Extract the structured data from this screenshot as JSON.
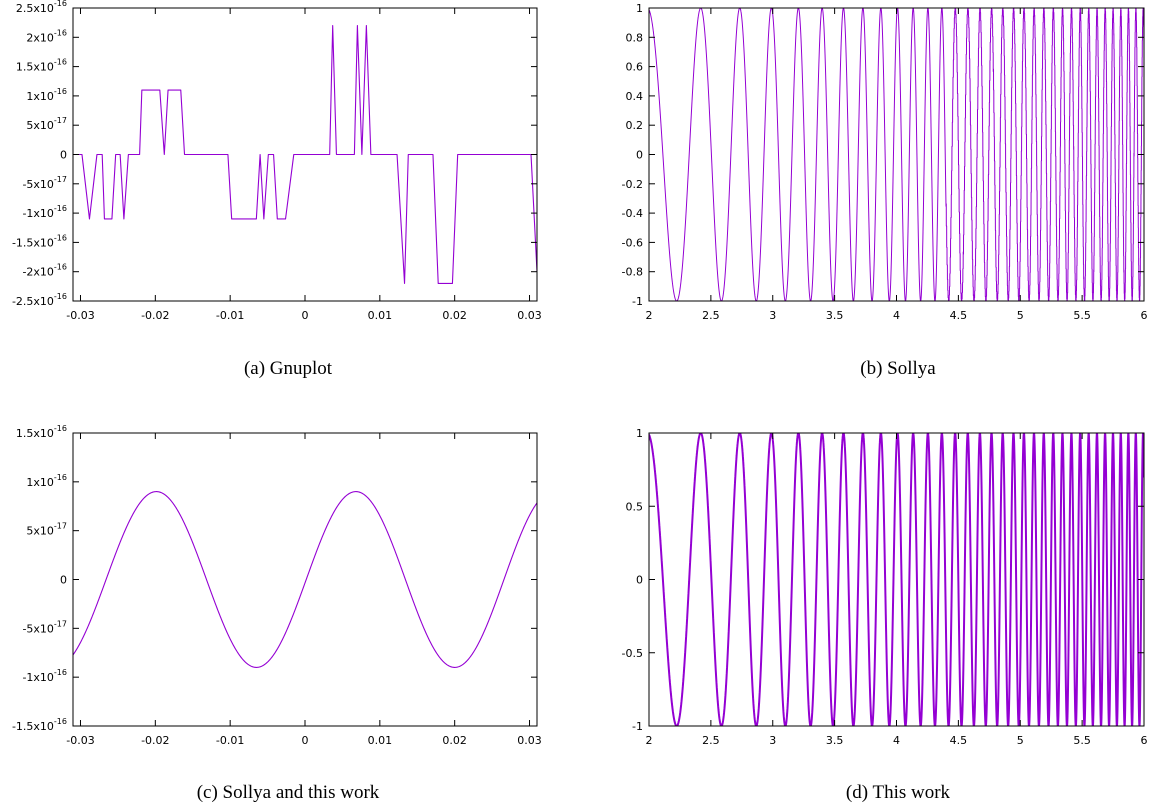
{
  "colors": {
    "series": "#9400d3",
    "axis": "#000000"
  },
  "chart_data": [
    {
      "id": "a",
      "type": "line",
      "caption": "(a) Gnuplot",
      "xlim": [
        -0.031,
        0.031
      ],
      "ylim": [
        -2.5e-16,
        2.5e-16
      ],
      "x_ticks": [
        {
          "v": -0.03,
          "label": "-0.03"
        },
        {
          "v": -0.02,
          "label": "-0.02"
        },
        {
          "v": -0.01,
          "label": "-0.01"
        },
        {
          "v": 0,
          "label": "0"
        },
        {
          "v": 0.01,
          "label": "0.01"
        },
        {
          "v": 0.02,
          "label": "0.02"
        },
        {
          "v": 0.03,
          "label": "0.03"
        }
      ],
      "y_ticks": [
        {
          "v": 2.5e-16,
          "base": "2.5x10",
          "exp": "-16"
        },
        {
          "v": 2e-16,
          "base": "2x10",
          "exp": "-16"
        },
        {
          "v": 1.5e-16,
          "base": "1.5x10",
          "exp": "-16"
        },
        {
          "v": 1e-16,
          "base": "1x10",
          "exp": "-16"
        },
        {
          "v": 5e-17,
          "base": "5x10",
          "exp": "-17"
        },
        {
          "v": 0,
          "base": "0",
          "exp": ""
        },
        {
          "v": -5e-17,
          "base": "-5x10",
          "exp": "-17"
        },
        {
          "v": -1e-16,
          "base": "-1x10",
          "exp": "-16"
        },
        {
          "v": -1.5e-16,
          "base": "-1.5x10",
          "exp": "-16"
        },
        {
          "v": -2e-16,
          "base": "-2x10",
          "exp": "-16"
        },
        {
          "v": -2.5e-16,
          "base": "-2.5x10",
          "exp": "-16"
        }
      ],
      "series": [
        {
          "points": [
            [
              -0.031,
              0
            ],
            [
              -0.0298,
              0
            ],
            [
              -0.0288,
              -1.1e-16
            ],
            [
              -0.0278,
              0
            ],
            [
              -0.0271,
              0
            ],
            [
              -0.0268,
              -1.1e-16
            ],
            [
              -0.0258,
              -1.1e-16
            ],
            [
              -0.0253,
              0
            ],
            [
              -0.0247,
              0
            ],
            [
              -0.0242,
              -1.1e-16
            ],
            [
              -0.0236,
              0
            ],
            [
              -0.0221,
              0
            ],
            [
              -0.0218,
              1.1e-16
            ],
            [
              -0.0194,
              1.1e-16
            ],
            [
              -0.0188,
              0
            ],
            [
              -0.0183,
              1.1e-16
            ],
            [
              -0.0166,
              1.1e-16
            ],
            [
              -0.0161,
              0
            ],
            [
              -0.0103,
              0
            ],
            [
              -0.0098,
              -1.1e-16
            ],
            [
              -0.0065,
              -1.1e-16
            ],
            [
              -0.006,
              0
            ],
            [
              -0.0055,
              -1.1e-16
            ],
            [
              -0.0049,
              0
            ],
            [
              -0.0042,
              0
            ],
            [
              -0.0037,
              -1.1e-16
            ],
            [
              -0.0026,
              -1.1e-16
            ],
            [
              -0.0015,
              0
            ],
            [
              0.0033,
              0
            ],
            [
              0.0037,
              2.2e-16
            ],
            [
              0.0042,
              0
            ],
            [
              0.0066,
              0
            ],
            [
              0.007,
              2.2e-16
            ],
            [
              0.0076,
              0
            ],
            [
              0.0082,
              2.2e-16
            ],
            [
              0.0088,
              0
            ],
            [
              0.0123,
              0
            ],
            [
              0.0133,
              -2.2e-16
            ],
            [
              0.0138,
              0
            ],
            [
              0.0171,
              0
            ],
            [
              0.0178,
              -2.2e-16
            ],
            [
              0.0197,
              -2.2e-16
            ],
            [
              0.0204,
              0
            ],
            [
              0.0302,
              0
            ],
            [
              0.031,
              -2e-16
            ]
          ]
        }
      ]
    },
    {
      "id": "b",
      "type": "line",
      "caption": "(b) Sollya",
      "xlim": [
        2,
        6
      ],
      "ylim": [
        -1,
        1
      ],
      "function": "sin(x^3)",
      "x_ticks": [
        {
          "v": 2,
          "label": "2"
        },
        {
          "v": 2.5,
          "label": "2.5"
        },
        {
          "v": 3,
          "label": "3"
        },
        {
          "v": 3.5,
          "label": "3.5"
        },
        {
          "v": 4,
          "label": "4"
        },
        {
          "v": 4.5,
          "label": "4.5"
        },
        {
          "v": 5,
          "label": "5"
        },
        {
          "v": 5.5,
          "label": "5.5"
        },
        {
          "v": 6,
          "label": "6"
        }
      ],
      "y_ticks": [
        {
          "v": 1,
          "base": "1",
          "exp": ""
        },
        {
          "v": 0.8,
          "base": "0.8",
          "exp": ""
        },
        {
          "v": 0.6,
          "base": "0.6",
          "exp": ""
        },
        {
          "v": 0.4,
          "base": "0.4",
          "exp": ""
        },
        {
          "v": 0.2,
          "base": "0.2",
          "exp": ""
        },
        {
          "v": 0,
          "base": "0",
          "exp": ""
        },
        {
          "v": -0.2,
          "base": "-0.2",
          "exp": ""
        },
        {
          "v": -0.4,
          "base": "-0.4",
          "exp": ""
        },
        {
          "v": -0.6,
          "base": "-0.6",
          "exp": ""
        },
        {
          "v": -0.8,
          "base": "-0.8",
          "exp": ""
        },
        {
          "v": -1,
          "base": "-1",
          "exp": ""
        }
      ]
    },
    {
      "id": "c",
      "type": "line",
      "caption": "(c) Sollya and this work",
      "xlim": [
        -0.031,
        0.031
      ],
      "ylim": [
        -1.5e-16,
        1.5e-16
      ],
      "function": "9e-17*sin(...)",
      "x_ticks": [
        {
          "v": -0.03,
          "label": "-0.03"
        },
        {
          "v": -0.02,
          "label": "-0.02"
        },
        {
          "v": -0.01,
          "label": "-0.01"
        },
        {
          "v": 0,
          "label": "0"
        },
        {
          "v": 0.01,
          "label": "0.01"
        },
        {
          "v": 0.02,
          "label": "0.02"
        },
        {
          "v": 0.03,
          "label": "0.03"
        }
      ],
      "y_ticks": [
        {
          "v": 1.5e-16,
          "base": "1.5x10",
          "exp": "-16"
        },
        {
          "v": 1e-16,
          "base": "1x10",
          "exp": "-16"
        },
        {
          "v": 5e-17,
          "base": "5x10",
          "exp": "-17"
        },
        {
          "v": 0,
          "base": "0",
          "exp": ""
        },
        {
          "v": -5e-17,
          "base": "-5x10",
          "exp": "-17"
        },
        {
          "v": -1e-16,
          "base": "-1x10",
          "exp": "-16"
        },
        {
          "v": -1.5e-16,
          "base": "-1.5x10",
          "exp": "-16"
        }
      ]
    },
    {
      "id": "d",
      "type": "line",
      "caption": "(d) This work",
      "xlim": [
        2,
        6
      ],
      "ylim": [
        -1,
        1
      ],
      "function": "sin(x^3)",
      "x_ticks": [
        {
          "v": 2,
          "label": "2"
        },
        {
          "v": 2.5,
          "label": "2.5"
        },
        {
          "v": 3,
          "label": "3"
        },
        {
          "v": 3.5,
          "label": "3.5"
        },
        {
          "v": 4,
          "label": "4"
        },
        {
          "v": 4.5,
          "label": "4.5"
        },
        {
          "v": 5,
          "label": "5"
        },
        {
          "v": 5.5,
          "label": "5.5"
        },
        {
          "v": 6,
          "label": "6"
        }
      ],
      "y_ticks": [
        {
          "v": 1,
          "base": "1",
          "exp": ""
        },
        {
          "v": 0.5,
          "base": "0.5",
          "exp": ""
        },
        {
          "v": 0,
          "base": "0",
          "exp": ""
        },
        {
          "v": -0.5,
          "base": "-0.5",
          "exp": ""
        },
        {
          "v": -1,
          "base": "-1",
          "exp": ""
        }
      ]
    }
  ]
}
